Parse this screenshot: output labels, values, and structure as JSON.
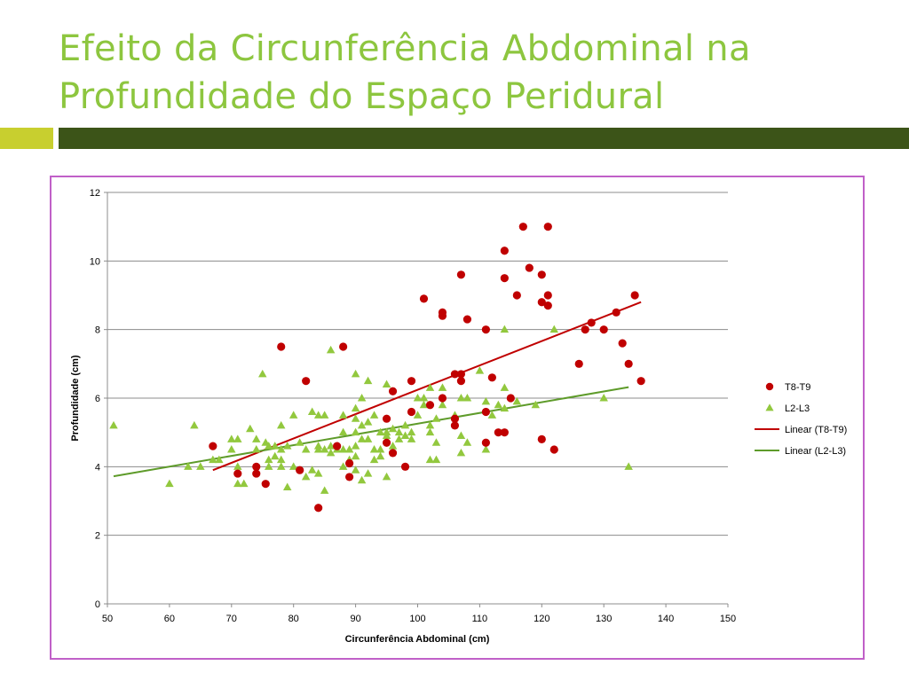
{
  "slide": {
    "title_line1": "Efeito da Circunferência Abdominal na",
    "title_line2": "Profundidade do Espaço Peridural",
    "title_color": "#8dc63f",
    "accent_left_color": "#c8cf2f",
    "accent_right_color": "#3c5418",
    "frame_color": "#c060c8"
  },
  "chart_data": {
    "type": "scatter",
    "title": "",
    "xlabel": "Circunferência Abdominal (cm)",
    "ylabel": "Profundidade (cm)",
    "xlim": [
      50,
      150
    ],
    "ylim": [
      0,
      12
    ],
    "xticks": [
      50,
      60,
      70,
      80,
      90,
      100,
      110,
      120,
      130,
      140,
      150
    ],
    "yticks": [
      0,
      2,
      4,
      6,
      8,
      10,
      12
    ],
    "grid": "horizontal",
    "legend_position": "right",
    "series": [
      {
        "name": "T8-T9",
        "marker": "circle",
        "color": "#c00000",
        "points": [
          [
            67,
            4.6
          ],
          [
            71,
            3.8
          ],
          [
            74,
            4.0
          ],
          [
            74,
            3.8
          ],
          [
            75.5,
            3.5
          ],
          [
            78,
            7.5
          ],
          [
            81,
            3.9
          ],
          [
            82,
            6.5
          ],
          [
            84,
            2.8
          ],
          [
            87,
            4.6
          ],
          [
            88,
            7.5
          ],
          [
            89,
            4.1
          ],
          [
            89,
            3.7
          ],
          [
            95,
            4.7
          ],
          [
            95,
            5.4
          ],
          [
            96,
            4.4
          ],
          [
            96,
            6.2
          ],
          [
            98,
            4.0
          ],
          [
            99,
            6.5
          ],
          [
            99,
            5.6
          ],
          [
            101,
            8.9
          ],
          [
            102,
            5.8
          ],
          [
            104,
            8.5
          ],
          [
            104,
            8.4
          ],
          [
            104,
            6.0
          ],
          [
            106,
            6.7
          ],
          [
            106,
            5.4
          ],
          [
            106,
            5.2
          ],
          [
            107,
            6.7
          ],
          [
            107,
            6.5
          ],
          [
            107,
            9.6
          ],
          [
            108,
            8.3
          ],
          [
            111,
            8.0
          ],
          [
            111,
            5.6
          ],
          [
            111,
            4.7
          ],
          [
            112,
            6.6
          ],
          [
            113,
            5.0
          ],
          [
            114,
            10.3
          ],
          [
            114,
            9.5
          ],
          [
            114,
            5.0
          ],
          [
            115,
            6.0
          ],
          [
            116,
            9.0
          ],
          [
            117,
            11.0
          ],
          [
            118,
            9.8
          ],
          [
            120,
            9.6
          ],
          [
            120,
            8.8
          ],
          [
            120,
            4.8
          ],
          [
            121,
            11.0
          ],
          [
            121,
            9.0
          ],
          [
            121,
            8.7
          ],
          [
            122,
            4.5
          ],
          [
            126,
            7.0
          ],
          [
            127,
            8.0
          ],
          [
            128,
            8.2
          ],
          [
            130,
            8.0
          ],
          [
            132,
            8.5
          ],
          [
            133,
            7.6
          ],
          [
            134,
            7.0
          ],
          [
            135,
            9.0
          ],
          [
            136,
            6.5
          ]
        ]
      },
      {
        "name": "L2-L3",
        "marker": "triangle",
        "color": "#92c83e",
        "points": [
          [
            51,
            5.2
          ],
          [
            60,
            3.5
          ],
          [
            63,
            4.0
          ],
          [
            64,
            5.2
          ],
          [
            65,
            4.0
          ],
          [
            67,
            4.2
          ],
          [
            68,
            4.2
          ],
          [
            70,
            4.8
          ],
          [
            70,
            4.5
          ],
          [
            71,
            4.8
          ],
          [
            71,
            4.0
          ],
          [
            71,
            3.5
          ],
          [
            72,
            3.5
          ],
          [
            73,
            5.1
          ],
          [
            74,
            4.8
          ],
          [
            74,
            4.5
          ],
          [
            75,
            6.7
          ],
          [
            75.5,
            4.7
          ],
          [
            76,
            4.6
          ],
          [
            76,
            4.2
          ],
          [
            76,
            4.0
          ],
          [
            77,
            4.6
          ],
          [
            77,
            4.3
          ],
          [
            78,
            4.5
          ],
          [
            78,
            4.2
          ],
          [
            78,
            4.0
          ],
          [
            78,
            5.2
          ],
          [
            79,
            4.6
          ],
          [
            79,
            3.4
          ],
          [
            80,
            5.5
          ],
          [
            80,
            4.0
          ],
          [
            81,
            4.7
          ],
          [
            82,
            4.5
          ],
          [
            82,
            3.7
          ],
          [
            83,
            5.6
          ],
          [
            83,
            3.9
          ],
          [
            84,
            5.5
          ],
          [
            84,
            4.6
          ],
          [
            84,
            4.5
          ],
          [
            84,
            3.8
          ],
          [
            85,
            5.5
          ],
          [
            85,
            4.5
          ],
          [
            85,
            3.3
          ],
          [
            86,
            7.4
          ],
          [
            86,
            4.6
          ],
          [
            86,
            4.4
          ],
          [
            87,
            4.5
          ],
          [
            88,
            5.5
          ],
          [
            88,
            5.0
          ],
          [
            88,
            4.5
          ],
          [
            88,
            4.0
          ],
          [
            89,
            4.5
          ],
          [
            89,
            4.2
          ],
          [
            90,
            6.7
          ],
          [
            90,
            5.7
          ],
          [
            90,
            5.4
          ],
          [
            90,
            5.0
          ],
          [
            90,
            4.6
          ],
          [
            90,
            4.3
          ],
          [
            90,
            3.9
          ],
          [
            91,
            6.0
          ],
          [
            91,
            5.2
          ],
          [
            91,
            4.8
          ],
          [
            91,
            3.6
          ],
          [
            92,
            6.5
          ],
          [
            92,
            5.3
          ],
          [
            92,
            4.8
          ],
          [
            92,
            3.8
          ],
          [
            93,
            5.5
          ],
          [
            93,
            4.5
          ],
          [
            93,
            4.2
          ],
          [
            94,
            5.0
          ],
          [
            94,
            4.5
          ],
          [
            94,
            4.3
          ],
          [
            95,
            6.4
          ],
          [
            95,
            5.0
          ],
          [
            95,
            4.9
          ],
          [
            95,
            3.7
          ],
          [
            96,
            5.1
          ],
          [
            96,
            4.6
          ],
          [
            97,
            5.0
          ],
          [
            97,
            4.8
          ],
          [
            98,
            5.2
          ],
          [
            98,
            4.9
          ],
          [
            99,
            5.0
          ],
          [
            99,
            4.8
          ],
          [
            100,
            6.0
          ],
          [
            100,
            5.5
          ],
          [
            101,
            5.8
          ],
          [
            101,
            6.0
          ],
          [
            102,
            6.3
          ],
          [
            102,
            5.2
          ],
          [
            102,
            5.0
          ],
          [
            102,
            4.2
          ],
          [
            103,
            5.4
          ],
          [
            103,
            4.7
          ],
          [
            103,
            4.2
          ],
          [
            104,
            6.3
          ],
          [
            104,
            5.8
          ],
          [
            106,
            5.5
          ],
          [
            107,
            6.0
          ],
          [
            107,
            4.9
          ],
          [
            107,
            4.4
          ],
          [
            108,
            6.0
          ],
          [
            108,
            4.7
          ],
          [
            110,
            6.8
          ],
          [
            111,
            5.9
          ],
          [
            111,
            4.5
          ],
          [
            112,
            5.5
          ],
          [
            113,
            5.8
          ],
          [
            114,
            8.0
          ],
          [
            114,
            6.3
          ],
          [
            114,
            5.7
          ],
          [
            116,
            5.9
          ],
          [
            119,
            5.8
          ],
          [
            122,
            8.0
          ],
          [
            130,
            6.0
          ],
          [
            134,
            4.0
          ]
        ]
      }
    ],
    "trendlines": [
      {
        "name": "Linear (T8-T9)",
        "color": "#c00000",
        "x": [
          67,
          136
        ],
        "y": [
          3.9,
          8.8
        ]
      },
      {
        "name": "Linear (L2-L3)",
        "color": "#5e9b2a",
        "x": [
          51,
          134
        ],
        "y": [
          3.72,
          6.32
        ]
      }
    ]
  }
}
